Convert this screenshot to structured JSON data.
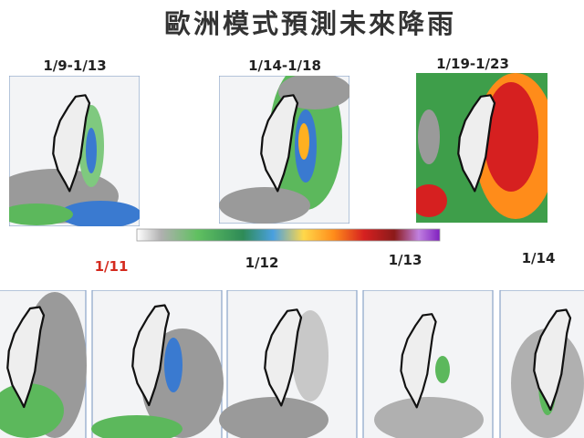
{
  "title": "歐洲模式預測未來降雨",
  "top_panels": [
    {
      "label": "1/9-1/13"
    },
    {
      "label": "1/14-1/18"
    },
    {
      "label": "1/19-1/23"
    }
  ],
  "bottom_panels": [
    {
      "label": "1/11"
    },
    {
      "label": "1/12"
    },
    {
      "label": "1/13"
    },
    {
      "label": "1/14"
    }
  ]
}
